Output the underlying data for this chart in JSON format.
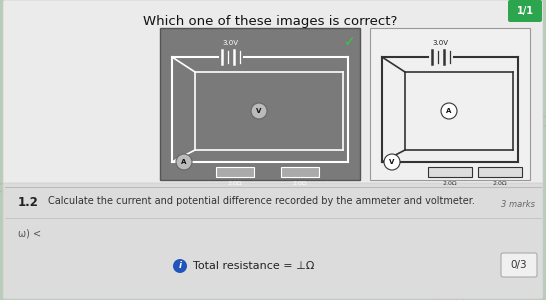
{
  "bg_outer": "#b8ccb8",
  "title": "Which one of these images is correct?",
  "score_badge": "1/1",
  "score_badge_color": "#2da44e",
  "score_badge_text_color": "#ffffff",
  "circuit1_bg": "#888888",
  "circuit2_bg": "#f8f8f8",
  "section_12_desc": "Calculate the current and potential difference recorded by the ammeter and voltmeter.",
  "marks_text": "3 marks",
  "bottom_left": "ω) <",
  "hint_text": "Total resistance = ⊥Ω",
  "score2_badge": "0/3",
  "card_bg": "#e8e8e8",
  "card_lower_bg": "#d8d8d8",
  "wire_color1": "#dddddd",
  "wire_color2": "#333333"
}
